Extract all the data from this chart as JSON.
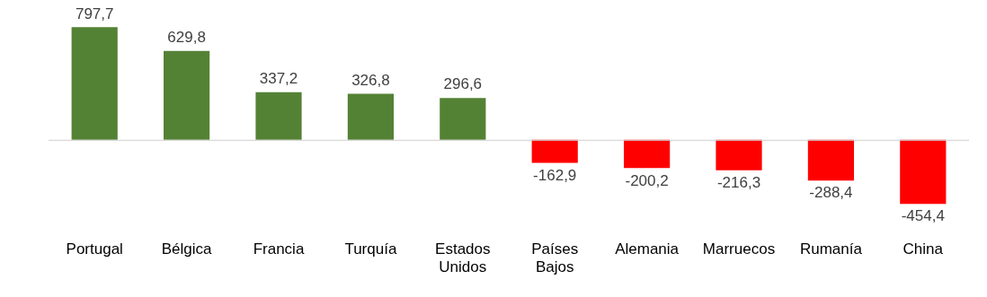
{
  "chart_data": {
    "type": "bar",
    "categories": [
      "Portugal",
      "Bélgica",
      "Francia",
      "Turquía",
      "Estados Unidos",
      "Países Bajos",
      "Alemania",
      "Marruecos",
      "Rumanía",
      "China"
    ],
    "values": [
      797.7,
      629.8,
      337.2,
      326.8,
      296.6,
      -162.9,
      -200.2,
      -216.3,
      -288.4,
      -454.4
    ],
    "colors": [
      "#548235",
      "#548235",
      "#548235",
      "#548235",
      "#548235",
      "#ff0000",
      "#ff0000",
      "#ff0000",
      "#ff0000",
      "#ff0000"
    ],
    "value_labels": [
      "797,7",
      "629,8",
      "337,2",
      "326,8",
      "296,6",
      "-162,9",
      "-200,2",
      "-216,3",
      "-288,4",
      "-454,4"
    ],
    "tick_labels": "x",
    "grid": false,
    "legend": false
  }
}
